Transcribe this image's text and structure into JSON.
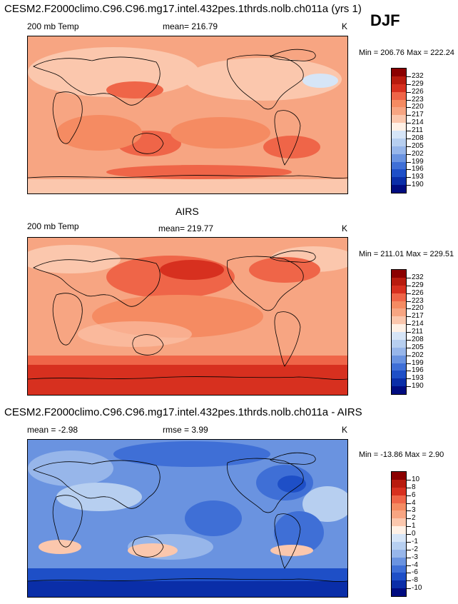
{
  "figure": {
    "title": "CESM2.F2000climo.C96.C96.mg17.intel.432pes.1thrds.nolb.ch011a (yrs 1)",
    "season": "DJF"
  },
  "panels": [
    {
      "variable": "200 mb Temp",
      "stat": "mean= 216.79",
      "units": "K",
      "minmax": "Min = 206.76 Max = 222.24",
      "colorbar": {
        "levels": [
          "232",
          "229",
          "226",
          "223",
          "220",
          "217",
          "214",
          "211",
          "208",
          "205",
          "202",
          "199",
          "196",
          "193",
          "190"
        ],
        "colors": [
          "#8b0000",
          "#b81b0e",
          "#d7301f",
          "#ef6548",
          "#f58b62",
          "#f7a582",
          "#fbc7ad",
          "#fff1e6",
          "#d6e5f7",
          "#b7cff0",
          "#97b6ea",
          "#6a93e0",
          "#3f6fd6",
          "#1e4fc7",
          "#0a2ea8",
          "#000c80"
        ]
      }
    },
    {
      "title": "AIRS",
      "variable": "200 mb Temp",
      "stat": "mean= 219.77",
      "units": "K",
      "minmax": "Min = 211.01 Max = 229.51",
      "colorbar": {
        "levels": [
          "232",
          "229",
          "226",
          "223",
          "220",
          "217",
          "214",
          "211",
          "208",
          "205",
          "202",
          "199",
          "196",
          "193",
          "190"
        ],
        "colors": [
          "#8b0000",
          "#b81b0e",
          "#d7301f",
          "#ef6548",
          "#f58b62",
          "#f7a582",
          "#fbc7ad",
          "#fff1e6",
          "#d6e5f7",
          "#b7cff0",
          "#97b6ea",
          "#6a93e0",
          "#3f6fd6",
          "#1e4fc7",
          "#0a2ea8",
          "#000c80"
        ]
      }
    },
    {
      "title": "CESM2.F2000climo.C96.C96.mg17.intel.432pes.1thrds.nolb.ch011a - AIRS",
      "stat_left": "mean =  -2.98",
      "stat": "rmse =  3.99",
      "units": "K",
      "minmax": "Min = -13.86 Max =   2.90",
      "colorbar": {
        "levels": [
          "10",
          "8",
          "6",
          "4",
          "3",
          "2",
          "1",
          "0",
          "-1",
          "-2",
          "-3",
          "-4",
          "-6",
          "-8",
          "-10"
        ],
        "colors": [
          "#8b0000",
          "#b81b0e",
          "#d7301f",
          "#ef6548",
          "#f58b62",
          "#f7a582",
          "#fbc7ad",
          "#fff1e6",
          "#d6e5f7",
          "#b7cff0",
          "#97b6ea",
          "#6a93e0",
          "#3f6fd6",
          "#1e4fc7",
          "#0a2ea8",
          "#000c80"
        ]
      }
    }
  ]
}
